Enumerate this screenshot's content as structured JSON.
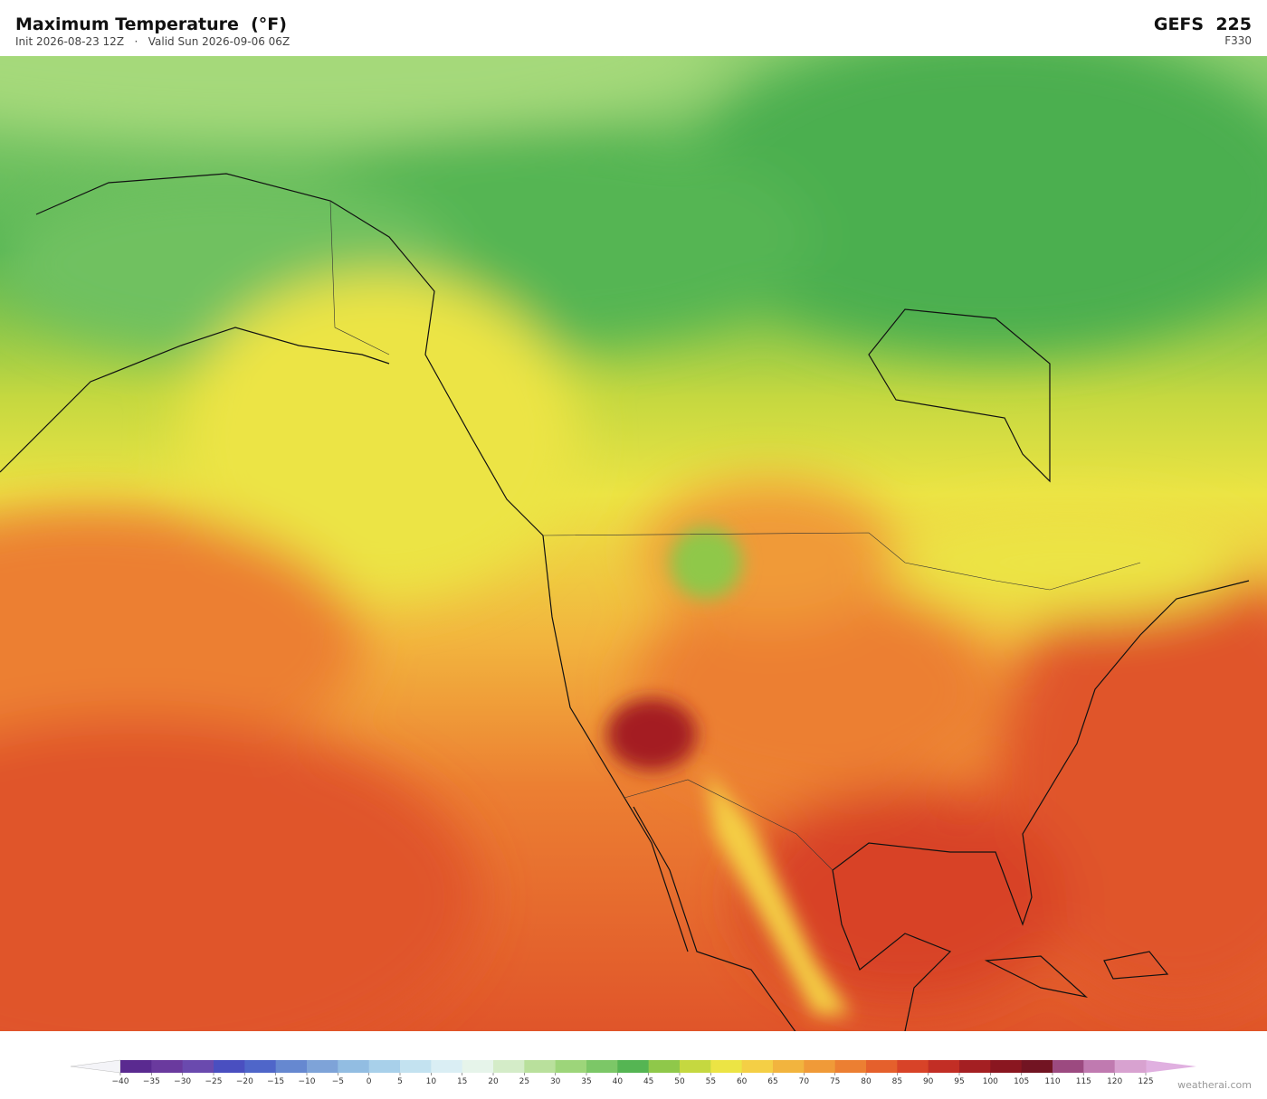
{
  "header": {
    "title": "Maximum Temperature  (°F)",
    "subtitle": "Init 2026-08-23 12Z   ·   Valid Sun 2026-09-06 06Z",
    "model": "GEFS  225",
    "forecast_hour": "F330"
  },
  "colorbar": {
    "ticks": [
      {
        "value": -40,
        "label": "−40"
      },
      {
        "value": -35,
        "label": "−35"
      },
      {
        "value": -30,
        "label": "−30"
      },
      {
        "value": -25,
        "label": "−25"
      },
      {
        "value": -20,
        "label": "−20"
      },
      {
        "value": -15,
        "label": "−15"
      },
      {
        "value": -10,
        "label": "−10"
      },
      {
        "value": -5,
        "label": "−5"
      },
      0,
      5,
      10,
      15,
      20,
      25,
      30,
      35,
      40,
      45,
      50,
      55,
      60,
      65,
      70,
      75,
      80,
      85,
      90,
      95,
      100,
      105,
      110,
      115,
      120,
      125
    ],
    "colors": [
      "#5a2a90",
      "#6a3a9e",
      "#6a4aae",
      "#4a4fc0",
      "#4f66c9",
      "#6688d0",
      "#7ea3d8",
      "#92bde2",
      "#a8d0ea",
      "#c3e2f0",
      "#daeef4",
      "#e6f4ea",
      "#d4ecc8",
      "#b9e09c",
      "#9dd57a",
      "#7cc767",
      "#55b553",
      "#8fc84a",
      "#c5d840",
      "#ece444",
      "#f4cf45",
      "#f2b43e",
      "#f09a38",
      "#ec7f32",
      "#e5602c",
      "#d84328",
      "#c22e25",
      "#a41f22",
      "#8a1620",
      "#721422",
      "#9c4a80",
      "#c07ab0",
      "#d8a2d0"
    ],
    "under_color": "#f4f4f8",
    "over_color": "#e0b0e0"
  },
  "footer": {
    "credit": "weatherai.com"
  }
}
